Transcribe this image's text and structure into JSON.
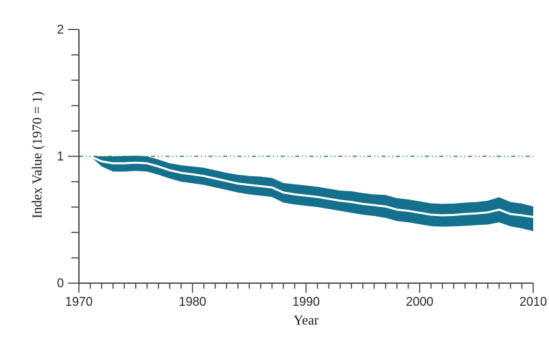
{
  "chart_data": {
    "type": "area",
    "title": "",
    "xlabel": "Year",
    "ylabel": "Index Value (1970 = 1)",
    "xlim": [
      1970,
      2010
    ],
    "ylim": [
      0,
      2
    ],
    "x_major_ticks": [
      1970,
      1980,
      1990,
      2000,
      2010
    ],
    "x_major_tick_labels": [
      "1970",
      "1980",
      "1990",
      "2000",
      "2010"
    ],
    "x_minor_tick_step": 1,
    "y_major_ticks": [
      0,
      1,
      2
    ],
    "y_major_tick_labels": [
      "0",
      "1",
      "2"
    ],
    "y_minor_tick_step": 0.2,
    "grid": false,
    "legend_position": "none",
    "reference_line": {
      "y": 1,
      "style": "dash-dot-dot",
      "color": "#1e7b41"
    },
    "colors": {
      "band": "#14708d",
      "center_line": "#ffffff",
      "axis": "#3c3c3c",
      "tick_label": "#2b2b2b"
    },
    "x": [
      1971,
      1972,
      1973,
      1974,
      1975,
      1976,
      1977,
      1978,
      1979,
      1980,
      1981,
      1982,
      1983,
      1984,
      1985,
      1986,
      1987,
      1988,
      1989,
      1990,
      1991,
      1992,
      1993,
      1994,
      1995,
      1996,
      1997,
      1998,
      1999,
      2000,
      2001,
      2002,
      2003,
      2004,
      2005,
      2006,
      2007,
      2008,
      2009,
      2010
    ],
    "series": [
      {
        "name": "index-central-estimate",
        "values": [
          1.0,
          0.96,
          0.945,
          0.945,
          0.95,
          0.945,
          0.92,
          0.89,
          0.87,
          0.858,
          0.845,
          0.825,
          0.805,
          0.785,
          0.775,
          0.765,
          0.755,
          0.715,
          0.7,
          0.69,
          0.68,
          0.665,
          0.65,
          0.64,
          0.625,
          0.615,
          0.605,
          0.58,
          0.57,
          0.555,
          0.54,
          0.535,
          0.538,
          0.545,
          0.55,
          0.558,
          0.58,
          0.545,
          0.535,
          0.522
        ]
      },
      {
        "name": "confidence-band-upper",
        "values": [
          1.0,
          1.0,
          1.0,
          1.003,
          1.005,
          1.0,
          0.975,
          0.945,
          0.93,
          0.92,
          0.91,
          0.89,
          0.87,
          0.855,
          0.845,
          0.84,
          0.83,
          0.79,
          0.78,
          0.77,
          0.76,
          0.745,
          0.73,
          0.725,
          0.71,
          0.7,
          0.695,
          0.67,
          0.66,
          0.645,
          0.63,
          0.625,
          0.628,
          0.635,
          0.64,
          0.65,
          0.678,
          0.64,
          0.628,
          0.605
        ]
      },
      {
        "name": "confidence-band-lower",
        "values": [
          1.0,
          0.92,
          0.88,
          0.88,
          0.885,
          0.88,
          0.855,
          0.825,
          0.8,
          0.788,
          0.775,
          0.755,
          0.735,
          0.715,
          0.7,
          0.69,
          0.68,
          0.635,
          0.62,
          0.61,
          0.6,
          0.585,
          0.57,
          0.555,
          0.54,
          0.53,
          0.515,
          0.49,
          0.48,
          0.465,
          0.45,
          0.445,
          0.448,
          0.452,
          0.458,
          0.462,
          0.48,
          0.448,
          0.432,
          0.41
        ]
      }
    ]
  }
}
